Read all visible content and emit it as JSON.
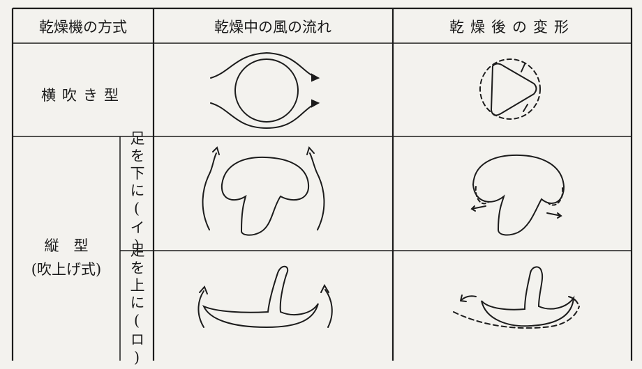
{
  "table": {
    "header": [
      "乾燥機の方式",
      "乾燥中の風の流れ",
      "乾燥後の変形"
    ],
    "rows": [
      {
        "method": "横吹き型"
      },
      {
        "method": "縦　型",
        "method_note": "(吹上げ式)",
        "variants": [
          "足を下に(イ)",
          "足を上に(ロ)"
        ]
      }
    ]
  }
}
